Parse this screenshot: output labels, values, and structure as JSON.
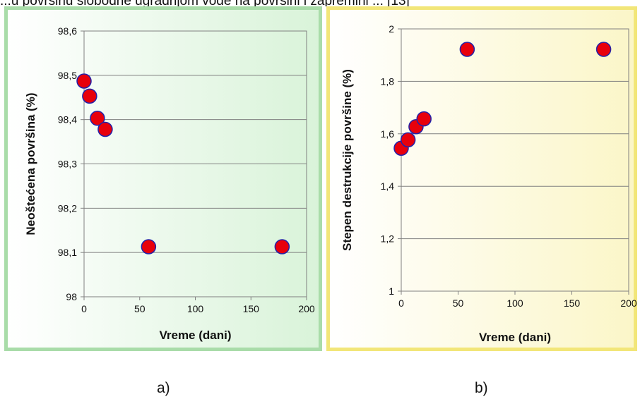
{
  "top_text": "...u površinu slobodne ugradnjom vode na površini i zapremini ... [13]",
  "captions": [
    "a)",
    "b)"
  ],
  "chart_data": [
    {
      "type": "scatter",
      "title": "",
      "xlabel": "Vreme (dani)",
      "ylabel": "Neoštećena površina (%)",
      "xlim": [
        0,
        200
      ],
      "ylim": [
        98,
        98.6
      ],
      "x_ticks": [
        "0",
        "50",
        "100",
        "150",
        "200"
      ],
      "y_ticks": [
        "98",
        "98,1",
        "98,2",
        "98,3",
        "98,4",
        "98,5",
        "98,6"
      ],
      "grid": "horizontal",
      "marker_color": "#e8000b",
      "marker_edge": "#2222aa",
      "panel_color": "#d9f3d9",
      "points": [
        {
          "x": 0,
          "y": 98.487
        },
        {
          "x": 5,
          "y": 98.453
        },
        {
          "x": 12,
          "y": 98.403
        },
        {
          "x": 19,
          "y": 98.378
        },
        {
          "x": 58,
          "y": 98.113
        },
        {
          "x": 178,
          "y": 98.113
        }
      ]
    },
    {
      "type": "scatter",
      "title": "",
      "xlabel": "Vreme (dani)",
      "ylabel": "Stepen destrukcije površine (%)",
      "xlim": [
        0,
        200
      ],
      "ylim": [
        1,
        2
      ],
      "x_ticks": [
        "0",
        "50",
        "100",
        "150",
        "200"
      ],
      "y_ticks": [
        "1",
        "1,2",
        "1,4",
        "1,6",
        "1,8",
        "2"
      ],
      "grid": "horizontal",
      "marker_color": "#e8000b",
      "marker_edge": "#2222aa",
      "panel_color": "#fbf6c8",
      "points": [
        {
          "x": 0,
          "y": 1.545
        },
        {
          "x": 6,
          "y": 1.577
        },
        {
          "x": 13,
          "y": 1.627
        },
        {
          "x": 20,
          "y": 1.657
        },
        {
          "x": 58,
          "y": 1.922
        },
        {
          "x": 178,
          "y": 1.922
        }
      ]
    }
  ]
}
